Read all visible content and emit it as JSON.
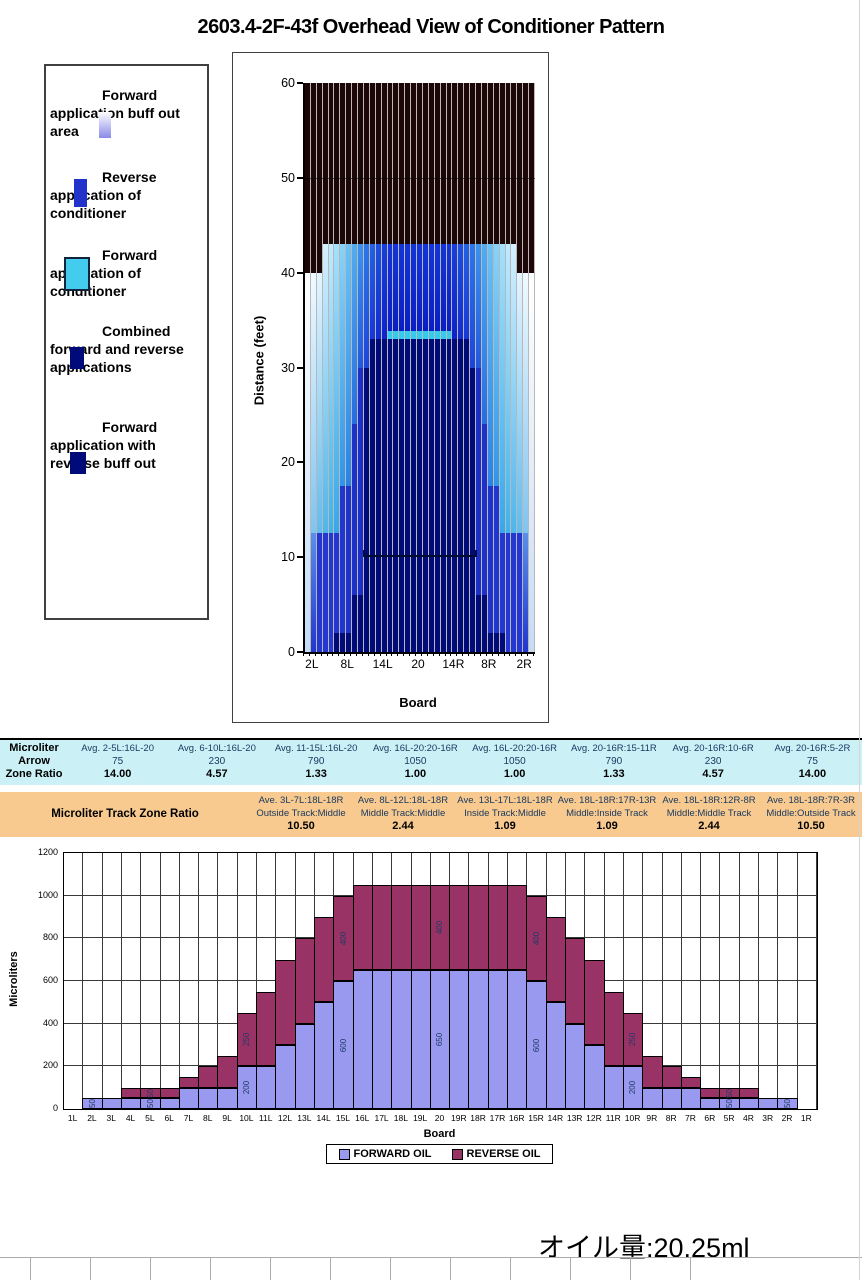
{
  "title": "2603.4-2F-43f Overhead View of Conditioner Pattern",
  "legend": {
    "items": [
      {
        "label": "Forward application buff out area",
        "swatch": "forward-buff-gradient",
        "colors": [
          "#FFFFFF",
          "#8A8AE8"
        ]
      },
      {
        "label": "Reverse application of conditioner",
        "swatch": "reverse-blue",
        "colors": [
          "#2233CC"
        ]
      },
      {
        "label": "Forward application of conditioner",
        "swatch": "forward-cyan",
        "colors": [
          "#44CCEE"
        ]
      },
      {
        "label": "Combined forward and reverse applications",
        "swatch": "combined-navy",
        "colors": [
          "#000A78"
        ]
      },
      {
        "label": "Forward application with reverse buff out",
        "swatch": "forward-reverse-buff-navy",
        "colors": [
          "#000A78"
        ]
      }
    ]
  },
  "chart_data": [
    {
      "type": "overhead-oil-pattern",
      "xlabel": "Board",
      "ylabel": "Distance (feet)",
      "ylim": [
        0,
        60
      ],
      "y_ticks": [
        0,
        10,
        20,
        30,
        40,
        50,
        60
      ],
      "x_tick_labels": [
        "2L",
        "8L",
        "14L",
        "20",
        "14R",
        "8R",
        "2R"
      ],
      "x_tick_board_indices": [
        1,
        7,
        13,
        19,
        25,
        31,
        37
      ],
      "board_count": 39,
      "colors": {
        "burnout_dark": "#1C0606",
        "combined_navy": "#000A78",
        "reverse_blue": "#2437D2",
        "forward_cyan_tick": "#35CBEE"
      },
      "annotations": {
        "buff_line_ft": 10,
        "buff_line_boards": "11L-11R",
        "pattern_end_ft": 43,
        "outer_pattern_end_ft": 40,
        "combined_zone_top_ft": 33,
        "fifty_foot_gridline": 50
      },
      "column_profiles_by_edge_distance": [
        [
          [
            0,
            40,
            "grad:#FFFFFF:#C6DCF6"
          ],
          [
            40,
            60,
            "dark"
          ]
        ],
        [
          [
            0,
            12.5,
            "grad:#5B8FEA:#2236CE"
          ],
          [
            12.5,
            40,
            "grad:#F2FAFF:#7FC4F0"
          ],
          [
            40,
            60,
            "dark"
          ]
        ],
        [
          [
            0,
            12.5,
            "solid:#2437D2"
          ],
          [
            12.5,
            40,
            "grad:#E4F5FF:#62BBEE"
          ],
          [
            40,
            60,
            "dark"
          ]
        ],
        [
          [
            0,
            12.5,
            "solid:#2437D2"
          ],
          [
            12.5,
            43,
            "grad:#D4F0FF:#4DB6EC"
          ],
          [
            43,
            60,
            "dark"
          ]
        ],
        [
          [
            0,
            12.5,
            "solid:#2437D2"
          ],
          [
            12.5,
            43,
            "grad:#C0EAFE:#3FB2EB"
          ],
          [
            43,
            60,
            "dark"
          ]
        ],
        [
          [
            0,
            2,
            "navy"
          ],
          [
            2,
            12.5,
            "solid:#2437D2"
          ],
          [
            12.5,
            43,
            "grad:#A6E1FC:#35A8EA"
          ],
          [
            43,
            60,
            "dark"
          ]
        ],
        [
          [
            0,
            2,
            "navy"
          ],
          [
            2,
            17.5,
            "solid:#2136CF"
          ],
          [
            17.5,
            43,
            "grad:#88D3F9:#2E96E8"
          ],
          [
            43,
            60,
            "dark"
          ]
        ],
        [
          [
            0,
            2,
            "navy"
          ],
          [
            2,
            17.5,
            "solid:#1F33CC"
          ],
          [
            17.5,
            43,
            "grad:#6AC2F5:#2A82E5"
          ],
          [
            43,
            60,
            "dark"
          ]
        ],
        [
          [
            0,
            6,
            "navy"
          ],
          [
            6,
            24,
            "solid:#1D30C9"
          ],
          [
            24,
            43,
            "grad:#51ADF1:#266DE2"
          ],
          [
            43,
            60,
            "dark"
          ]
        ],
        [
          [
            0,
            6,
            "navy"
          ],
          [
            6,
            30,
            "solid:#1C2FC6"
          ],
          [
            30,
            43,
            "grad:#3B93ED:#2158DF"
          ],
          [
            43,
            60,
            "dark"
          ]
        ],
        [
          [
            0,
            30,
            "navy"
          ],
          [
            30,
            43,
            "grad:#2C77E8:#1C44DC"
          ],
          [
            43,
            60,
            "dark"
          ]
        ],
        [
          [
            0,
            33,
            "navy"
          ],
          [
            33,
            43,
            "grad:#2361E4:#1737D8"
          ],
          [
            43,
            60,
            "dark"
          ]
        ],
        [
          [
            0,
            33,
            "navy"
          ],
          [
            33,
            43,
            "grad:#1C4FE0:#122CD2"
          ],
          [
            43,
            60,
            "dark"
          ]
        ],
        [
          [
            0,
            33,
            "navy"
          ],
          [
            33,
            43,
            "grad:#173FDC:#0D23CC"
          ],
          [
            43,
            60,
            "dark"
          ]
        ],
        [
          [
            0,
            33,
            "navy"
          ],
          [
            33,
            33.9,
            "solid:#35CBEE"
          ],
          [
            33.9,
            43,
            "grad:#1335D8:#0A1EC6"
          ],
          [
            43,
            60,
            "dark"
          ]
        ]
      ]
    },
    {
      "type": "bar",
      "stacked": true,
      "xlabel": "Board",
      "ylabel": "Microliters",
      "ylim": [
        0,
        1200
      ],
      "ytick_step": 200,
      "grid": true,
      "legend_position": "bottom",
      "categories": [
        "1L",
        "2L",
        "3L",
        "4L",
        "5L",
        "6L",
        "7L",
        "8L",
        "9L",
        "10L",
        "11L",
        "12L",
        "13L",
        "14L",
        "15L",
        "16L",
        "17L",
        "18L",
        "19L",
        "20",
        "19R",
        "18R",
        "17R",
        "16R",
        "15R",
        "14R",
        "13R",
        "12R",
        "11R",
        "10R",
        "9R",
        "8R",
        "7R",
        "6R",
        "5R",
        "4R",
        "3R",
        "2R",
        "1R"
      ],
      "series": [
        {
          "name": "FORWARD OIL",
          "color": "#9999F0",
          "values": [
            0,
            50,
            50,
            50,
            50,
            50,
            100,
            100,
            100,
            200,
            200,
            300,
            400,
            500,
            600,
            650,
            650,
            650,
            650,
            650,
            650,
            650,
            650,
            650,
            600,
            500,
            400,
            300,
            200,
            200,
            100,
            100,
            100,
            50,
            50,
            50,
            50,
            50,
            0
          ]
        },
        {
          "name": "REVERSE OIL",
          "color": "#993366",
          "values": [
            0,
            0,
            0,
            50,
            50,
            50,
            50,
            100,
            150,
            250,
            350,
            400,
            400,
            400,
            400,
            400,
            400,
            400,
            400,
            400,
            400,
            400,
            400,
            400,
            400,
            400,
            400,
            400,
            350,
            250,
            150,
            100,
            50,
            50,
            50,
            50,
            0,
            0,
            0
          ]
        }
      ],
      "bar_labels": [
        {
          "board": "2L",
          "forward": "50"
        },
        {
          "board": "5L",
          "forward": "50",
          "reverse": "50"
        },
        {
          "board": "10L",
          "forward": "200",
          "reverse": "250"
        },
        {
          "board": "15L",
          "forward": "600",
          "reverse": "400"
        },
        {
          "board": "20",
          "forward": "650",
          "reverse": "400"
        },
        {
          "board": "15R",
          "forward": "600",
          "reverse": "400"
        },
        {
          "board": "10R",
          "forward": "200",
          "reverse": "250"
        },
        {
          "board": "5R",
          "forward": "50",
          "reverse": "50"
        },
        {
          "board": "2R",
          "forward": "50"
        }
      ]
    }
  ],
  "arrow_table": {
    "label_lines": [
      "Microliter",
      "Arrow",
      "Zone Ratio"
    ],
    "bg": "#CBF1F7",
    "columns": [
      {
        "header": "Avg. 2-5L:16L-20",
        "value": "75",
        "ratio": "14.00"
      },
      {
        "header": "Avg. 6-10L:16L-20",
        "value": "230",
        "ratio": "4.57"
      },
      {
        "header": "Avg. 11-15L:16L-20",
        "value": "790",
        "ratio": "1.33"
      },
      {
        "header": "Avg. 16L-20:20-16R",
        "value": "1050",
        "ratio": "1.00"
      },
      {
        "header": "Avg. 16L-20:20-16R",
        "value": "1050",
        "ratio": "1.00"
      },
      {
        "header": "Avg. 20-16R:15-11R",
        "value": "790",
        "ratio": "1.33"
      },
      {
        "header": "Avg. 20-16R:10-6R",
        "value": "230",
        "ratio": "4.57"
      },
      {
        "header": "Avg. 20-16R:5-2R",
        "value": "75",
        "ratio": "14.00"
      }
    ]
  },
  "track_table": {
    "label": "Microliter Track Zone Ratio",
    "bg": "#F8CA8F",
    "columns": [
      {
        "header": "Ave. 3L-7L:18L-18R",
        "zone": "Outside Track:Middle",
        "ratio": "10.50"
      },
      {
        "header": "Ave. 8L-12L:18L-18R",
        "zone": "Middle Track:Middle",
        "ratio": "2.44"
      },
      {
        "header": "Ave. 13L-17L:18L-18R",
        "zone": "Inside Track:Middle",
        "ratio": "1.09"
      },
      {
        "header": "Ave. 18L-18R:17R-13R",
        "zone": "Middle:Inside Track",
        "ratio": "1.09"
      },
      {
        "header": "Ave. 18L-18R:12R-8R",
        "zone": "Middle:Middle Track",
        "ratio": "2.44"
      },
      {
        "header": "Ave. 18L-18R:7R-3R",
        "zone": "Middle:Outside Track",
        "ratio": "10.50"
      }
    ]
  },
  "footer": {
    "oil_text": "オイル量:20.25ml"
  }
}
